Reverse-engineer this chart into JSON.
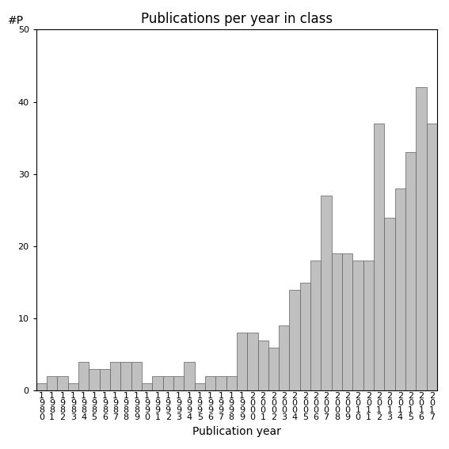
{
  "title": "Publications per year in class",
  "xlabel": "Publication year",
  "ylabel_text": "#P",
  "years": [
    "1980",
    "1981",
    "1982",
    "1983",
    "1984",
    "1985",
    "1986",
    "1987",
    "1988",
    "1989",
    "1990",
    "1991",
    "1992",
    "1993",
    "1994",
    "1995",
    "1996",
    "1997",
    "1998",
    "1999",
    "2000",
    "2001",
    "2002",
    "2003",
    "2004",
    "2005",
    "2006",
    "2007",
    "2008",
    "2009",
    "2010",
    "2011",
    "2012",
    "2013",
    "2014",
    "2015",
    "2016",
    "2017"
  ],
  "values": [
    1,
    2,
    2,
    1,
    4,
    3,
    3,
    4,
    4,
    4,
    1,
    2,
    2,
    2,
    4,
    1,
    2,
    2,
    2,
    8,
    8,
    7,
    6,
    9,
    14,
    15,
    18,
    27,
    19,
    19,
    18,
    18,
    37,
    24,
    28,
    33,
    42,
    37
  ],
  "bar_color": "#c0c0c0",
  "bar_edgecolor": "#606060",
  "ylim": [
    0,
    50
  ],
  "yticks": [
    0,
    10,
    20,
    30,
    40,
    50
  ],
  "background_color": "#ffffff",
  "title_fontsize": 12,
  "xlabel_fontsize": 10,
  "ylabel_fontsize": 10,
  "tick_fontsize": 8
}
